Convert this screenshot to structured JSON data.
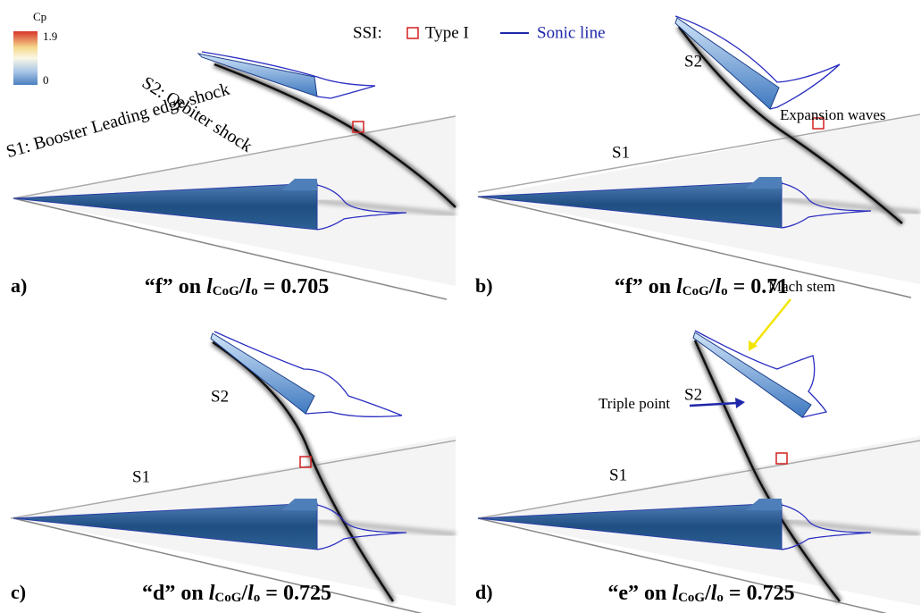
{
  "colorbar": {
    "label": "Cp",
    "max": 1.9,
    "min": 0
  },
  "legend": {
    "prefix": "SSI:",
    "marker_label": "Type I",
    "line_label": "Sonic line"
  },
  "panels": [
    {
      "label": "a)",
      "annotations": [
        "S2: Orbiter shock",
        "S1: Booster Leading edge shock"
      ],
      "caption": {
        "case": "“f”",
        "on": "on",
        "num": "l",
        "num_sub": "CoG",
        "slash": "/",
        "den": "l",
        "den_sub": "o",
        "value": "= 0.705"
      }
    },
    {
      "label": "b)",
      "annotations": [
        "S2",
        "Expansion waves",
        "S1"
      ],
      "caption": {
        "case": "“f”",
        "on": "on",
        "num": "l",
        "num_sub": "CoG",
        "slash": "/",
        "den": "l",
        "den_sub": "o",
        "value": "= 0.71"
      }
    },
    {
      "label": "c)",
      "annotations": [
        "S2",
        "S1"
      ],
      "caption": {
        "case": "“d”",
        "on": "on",
        "num": "l",
        "num_sub": "CoG",
        "slash": "/",
        "den": "l",
        "den_sub": "o",
        "value": "= 0.725"
      }
    },
    {
      "label": "d)",
      "annotations": [
        "S2",
        "Mach stem",
        "Triple point",
        "S1"
      ],
      "caption": {
        "case": "“e”",
        "on": "on",
        "num": "l",
        "num_sub": "CoG",
        "slash": "/",
        "den": "l",
        "den_sub": "o",
        "value": "= 0.725"
      }
    }
  ]
}
